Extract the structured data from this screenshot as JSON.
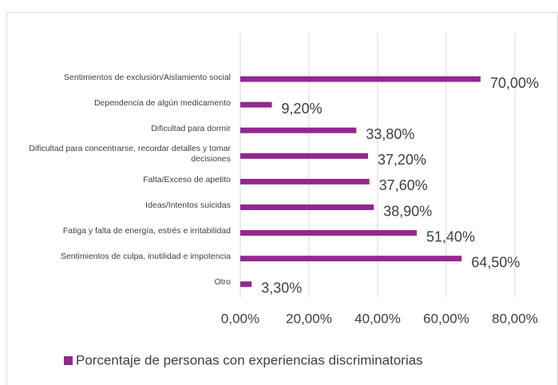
{
  "chart_data": {
    "type": "bar",
    "orientation": "horizontal",
    "categories": [
      "Sentimientos de exclusión/Aislamiento social",
      "Dependencia de algún medicamento",
      "Dificultad para dormir",
      "Dificultad para concentrarse, recordar detalles y tomar decisiones",
      "Falta/Exceso de apetito",
      "Ideas/Intentos suicidas",
      "Fatiga y falta de energía, estrés e irritabilidad",
      "Sentimientos de culpa, inutilidad e impotencia",
      "Otro"
    ],
    "series": [
      {
        "name": "Porcentaje de personas con experiencias discriminatorias",
        "color": "#93278f",
        "values": [
          70,
          9.2,
          33.8,
          37.2,
          37.6,
          38.9,
          51.4,
          64.5,
          3.3
        ],
        "value_labels": [
          "70,00%",
          "9,20%",
          "33,80%",
          "37,20%",
          "37,60%",
          "38,90%",
          "51,40%",
          "64,50%",
          "3,30%"
        ]
      }
    ],
    "xlim": [
      0,
      80
    ],
    "xticks": [
      {
        "value": 0,
        "label": "0,00%"
      },
      {
        "value": 20,
        "label": "20,00%"
      },
      {
        "value": 40,
        "label": "40,00%"
      },
      {
        "value": 60,
        "label": "60,00%"
      },
      {
        "value": 80,
        "label": "80,00%"
      }
    ],
    "grid": true,
    "legend": "bottom"
  }
}
